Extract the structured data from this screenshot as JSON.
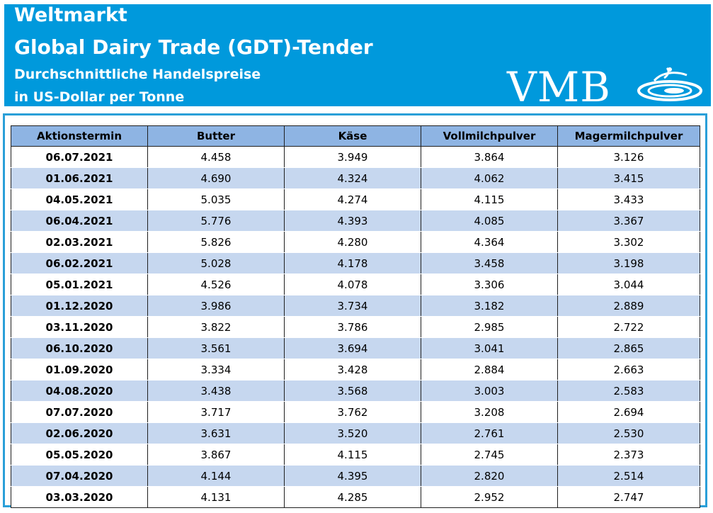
{
  "header": {
    "line1": "Weltmarkt",
    "line2": "Global Dairy Trade (GDT)-Tender",
    "line3": "Durchschnittliche Handelspreise",
    "line4": "in US-Dollar per Tonne",
    "logo_text": "VMB"
  },
  "colors": {
    "header_bg": "#0099dc",
    "table_header_bg": "#8eb4e3",
    "row_stripe": "#c6d7ef",
    "frame_border": "#2a9fd8"
  },
  "table": {
    "columns": [
      "Aktionstermin",
      "Butter",
      "Käse",
      "Vollmilchpulver",
      "Magermilchpulver"
    ],
    "rows": [
      [
        "06.07.2021",
        "4.458",
        "3.949",
        "3.864",
        "3.126"
      ],
      [
        "01.06.2021",
        "4.690",
        "4.324",
        "4.062",
        "3.415"
      ],
      [
        "04.05.2021",
        "5.035",
        "4.274",
        "4.115",
        "3.433"
      ],
      [
        "06.04.2021",
        "5.776",
        "4.393",
        "4.085",
        "3.367"
      ],
      [
        "02.03.2021",
        "5.826",
        "4.280",
        "4.364",
        "3.302"
      ],
      [
        "06.02.2021",
        "5.028",
        "4.178",
        "3.458",
        "3.198"
      ],
      [
        "05.01.2021",
        "4.526",
        "4.078",
        "3.306",
        "3.044"
      ],
      [
        "01.12.2020",
        "3.986",
        "3.734",
        "3.182",
        "2.889"
      ],
      [
        "03.11.2020",
        "3.822",
        "3.786",
        "2.985",
        "2.722"
      ],
      [
        "06.10.2020",
        "3.561",
        "3.694",
        "3.041",
        "2.865"
      ],
      [
        "01.09.2020",
        "3.334",
        "3.428",
        "2.884",
        "2.663"
      ],
      [
        "04.08.2020",
        "3.438",
        "3.568",
        "3.003",
        "2.583"
      ],
      [
        "07.07.2020",
        "3.717",
        "3.762",
        "3.208",
        "2.694"
      ],
      [
        "02.06.2020",
        "3.631",
        "3.520",
        "2.761",
        "2.530"
      ],
      [
        "05.05.2020",
        "3.867",
        "4.115",
        "2.745",
        "2.373"
      ],
      [
        "07.04.2020",
        "4.144",
        "4.395",
        "2.820",
        "2.514"
      ],
      [
        "03.03.2020",
        "4.131",
        "4.285",
        "2.952",
        "2.747"
      ]
    ]
  }
}
